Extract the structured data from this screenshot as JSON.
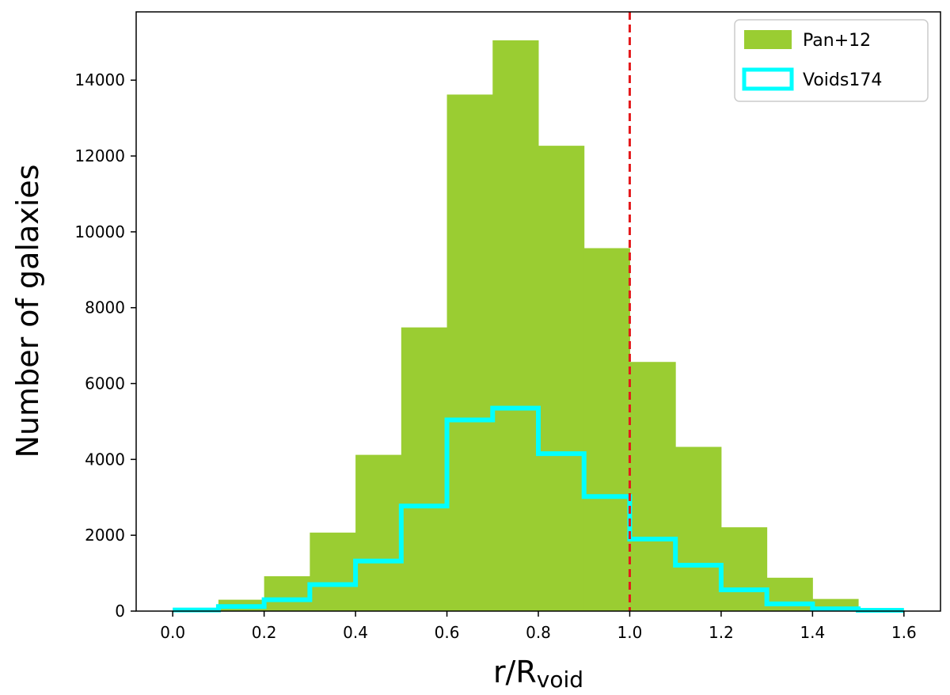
{
  "chart_data": {
    "type": "bar",
    "title": "",
    "xlabel": "r/R",
    "xlabel_subscript": "void",
    "ylabel": "Number of galaxies",
    "xlim": [
      -0.08,
      1.68
    ],
    "ylim": [
      0,
      15800
    ],
    "xticks": [
      0.0,
      0.2,
      0.4,
      0.6,
      0.8,
      1.0,
      1.2,
      1.4,
      1.6
    ],
    "xtick_labels": [
      "0.0",
      "0.2",
      "0.4",
      "0.6",
      "0.8",
      "1.0",
      "1.2",
      "1.4",
      "1.6"
    ],
    "yticks": [
      0,
      2000,
      4000,
      6000,
      8000,
      10000,
      12000,
      14000
    ],
    "ytick_labels": [
      "0",
      "2000",
      "4000",
      "6000",
      "8000",
      "10000",
      "12000",
      "14000"
    ],
    "bin_edges": [
      0.0,
      0.1,
      0.2,
      0.3,
      0.4,
      0.5,
      0.6,
      0.7,
      0.8,
      0.9,
      1.0,
      1.1,
      1.2,
      1.3,
      1.4,
      1.5,
      1.6
    ],
    "grid": false,
    "legend_position": "top-right",
    "series": [
      {
        "name": "Pan+12",
        "style": "filled",
        "color": "#9acd32",
        "values": [
          30,
          300,
          920,
          2070,
          4120,
          7480,
          13620,
          15050,
          12270,
          9570,
          6570,
          4330,
          2210,
          880,
          320,
          30
        ]
      },
      {
        "name": "Voids174",
        "style": "step",
        "color": "#00ffff",
        "values": [
          30,
          120,
          300,
          700,
          1320,
          2770,
          5040,
          5350,
          4150,
          3020,
          1900,
          1210,
          560,
          190,
          60,
          20
        ]
      }
    ],
    "reference_line": {
      "x": 1.0,
      "color": "#e41a1c",
      "style": "dashed"
    }
  }
}
